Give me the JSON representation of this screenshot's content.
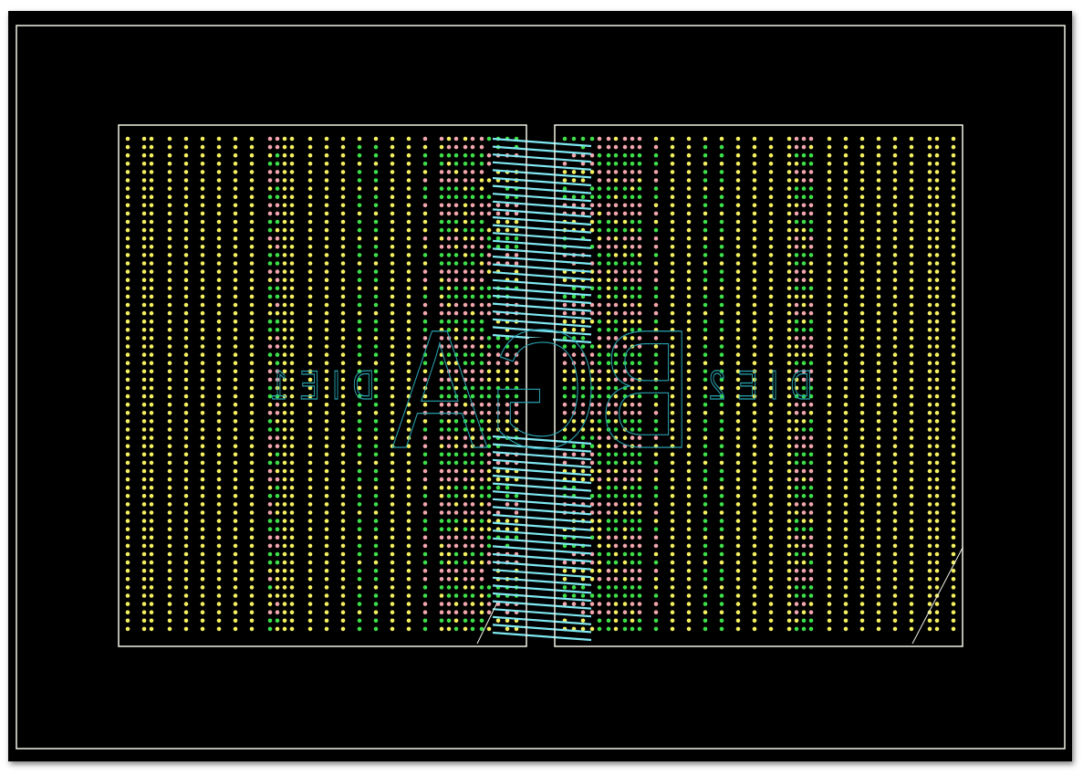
{
  "layout": {
    "labels": {
      "die1": "DIE1",
      "die2": "DIE2",
      "package": "BGA"
    },
    "colors": {
      "background": "#000000",
      "outline": "#f2f2e6",
      "ball_signal": "#f5f060",
      "ball_power": "#3ee04a",
      "ball_ground": "#f2a6ad",
      "trace": "#7fe8f2",
      "silkscreen": "#2aa3b0"
    },
    "text_mirrored": true
  }
}
